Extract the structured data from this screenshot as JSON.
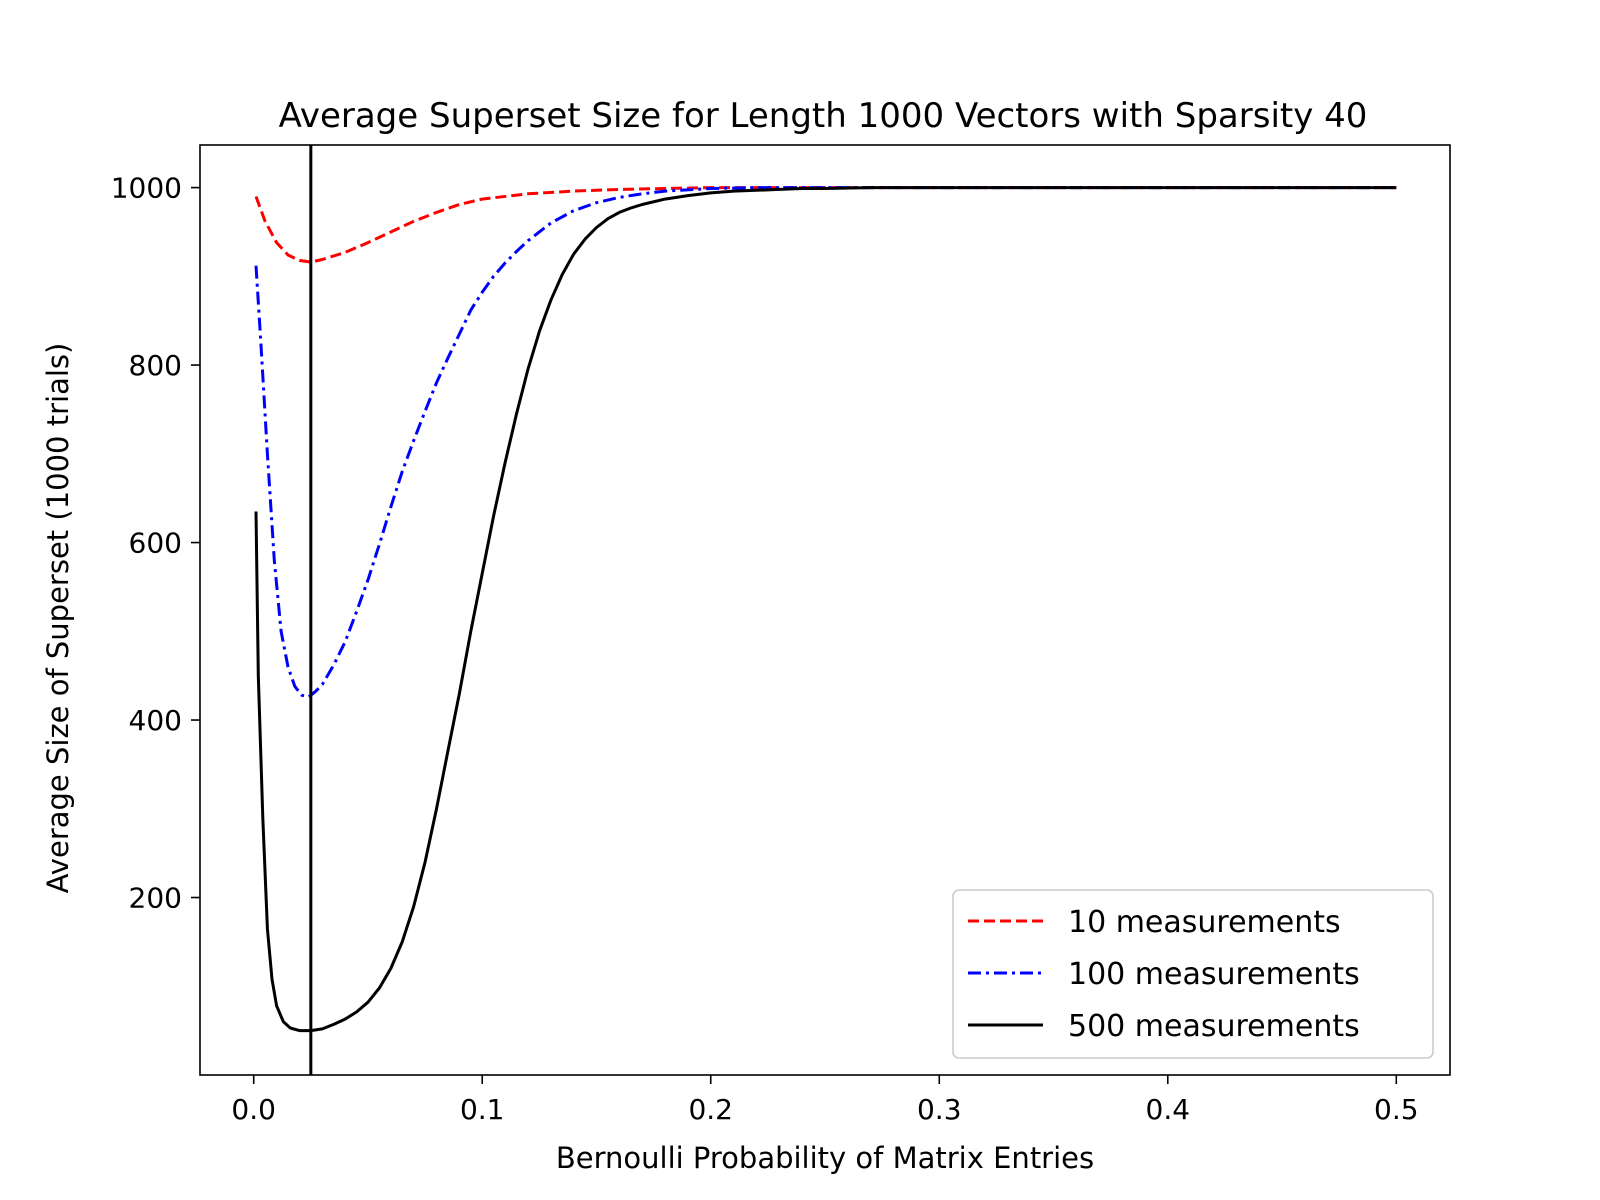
{
  "chart_data": {
    "type": "line",
    "title": "Average Superset Size for Length 1000 Vectors with Sparsity 40",
    "xlabel": "Bernoulli Probability of Matrix Entries",
    "ylabel": "Average Size of Superset (1000 trials)",
    "xlim": [
      -0.0235,
      0.5235
    ],
    "ylim": [
      0,
      1048
    ],
    "xticks": [
      0.0,
      0.1,
      0.2,
      0.3,
      0.4,
      0.5
    ],
    "xtick_labels": [
      "0.0",
      "0.1",
      "0.2",
      "0.3",
      "0.4",
      "0.5"
    ],
    "yticks": [
      200,
      400,
      600,
      800,
      1000
    ],
    "ytick_labels": [
      "200",
      "400",
      "600",
      "800",
      "1000"
    ],
    "vline_x": 0.025,
    "vline_color": "#000000",
    "legend_position": "lower-right",
    "series": [
      {
        "name": "10 measurements",
        "color": "#ff0000",
        "style": "dashed",
        "x": [
          0.001,
          0.005,
          0.01,
          0.015,
          0.02,
          0.025,
          0.03,
          0.04,
          0.05,
          0.06,
          0.07,
          0.08,
          0.09,
          0.1,
          0.12,
          0.14,
          0.16,
          0.18,
          0.2,
          0.25,
          0.3,
          0.4,
          0.5
        ],
        "y": [
          990,
          962,
          938,
          924,
          918,
          916,
          919,
          927,
          938,
          950,
          962,
          972,
          981,
          987,
          993,
          996,
          998,
          999,
          1000,
          1000,
          1000,
          1000,
          1000
        ]
      },
      {
        "name": "100 measurements",
        "color": "#0000ff",
        "style": "dashdot",
        "x": [
          0.001,
          0.003,
          0.006,
          0.009,
          0.012,
          0.015,
          0.018,
          0.021,
          0.024,
          0.027,
          0.03,
          0.035,
          0.04,
          0.045,
          0.05,
          0.055,
          0.06,
          0.065,
          0.07,
          0.075,
          0.08,
          0.085,
          0.09,
          0.095,
          0.1,
          0.105,
          0.11,
          0.115,
          0.12,
          0.13,
          0.14,
          0.15,
          0.16,
          0.17,
          0.18,
          0.2,
          0.22,
          0.25,
          0.3,
          0.4,
          0.5
        ],
        "y": [
          912,
          830,
          700,
          580,
          500,
          460,
          438,
          428,
          426,
          432,
          440,
          462,
          488,
          522,
          558,
          598,
          640,
          680,
          715,
          748,
          780,
          808,
          835,
          862,
          882,
          900,
          915,
          928,
          940,
          960,
          974,
          983,
          989,
          993,
          996,
          999,
          1000,
          1000,
          1000,
          1000,
          1000
        ]
      },
      {
        "name": "500 measurements",
        "color": "#000000",
        "style": "solid",
        "x": [
          0.001,
          0.002,
          0.004,
          0.006,
          0.008,
          0.01,
          0.013,
          0.016,
          0.02,
          0.025,
          0.03,
          0.035,
          0.04,
          0.045,
          0.05,
          0.055,
          0.06,
          0.065,
          0.07,
          0.075,
          0.08,
          0.085,
          0.09,
          0.095,
          0.1,
          0.105,
          0.11,
          0.115,
          0.12,
          0.125,
          0.13,
          0.135,
          0.14,
          0.145,
          0.15,
          0.155,
          0.16,
          0.165,
          0.17,
          0.18,
          0.19,
          0.2,
          0.21,
          0.22,
          0.23,
          0.24,
          0.25,
          0.27,
          0.3,
          0.4,
          0.5
        ],
        "y": [
          635,
          450,
          290,
          165,
          108,
          78,
          60,
          53,
          50,
          50,
          52,
          57,
          63,
          71,
          82,
          98,
          120,
          150,
          190,
          240,
          300,
          365,
          430,
          500,
          565,
          630,
          690,
          745,
          795,
          838,
          873,
          902,
          925,
          942,
          955,
          965,
          972,
          977,
          981,
          987,
          991,
          994,
          996,
          997,
          998,
          999,
          999,
          1000,
          1000,
          1000,
          1000
        ]
      }
    ]
  }
}
